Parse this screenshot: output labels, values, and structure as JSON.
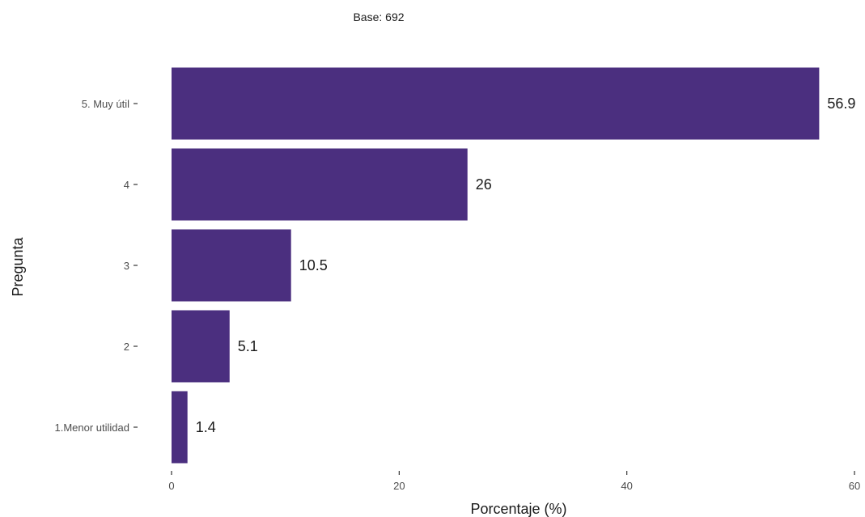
{
  "chart_data": {
    "type": "bar",
    "orientation": "horizontal",
    "subtitle": "Base: 692",
    "xlabel": "Porcentaje (%)",
    "ylabel": "Pregunta",
    "categories": [
      "5. Muy útil",
      "4",
      "3",
      "2",
      "1.Menor utilidad"
    ],
    "values": [
      56.9,
      26,
      10.5,
      5.1,
      1.4
    ],
    "data_labels": [
      "56.9",
      "26",
      "10.5",
      "5.1",
      "1.4"
    ],
    "xticks": [
      0,
      20,
      40,
      60
    ],
    "xtick_labels": [
      "0",
      "20",
      "40",
      "60"
    ],
    "xlim": [
      0,
      60
    ],
    "grid": false,
    "legend": "none",
    "bar_color": "#4b2f7f"
  }
}
